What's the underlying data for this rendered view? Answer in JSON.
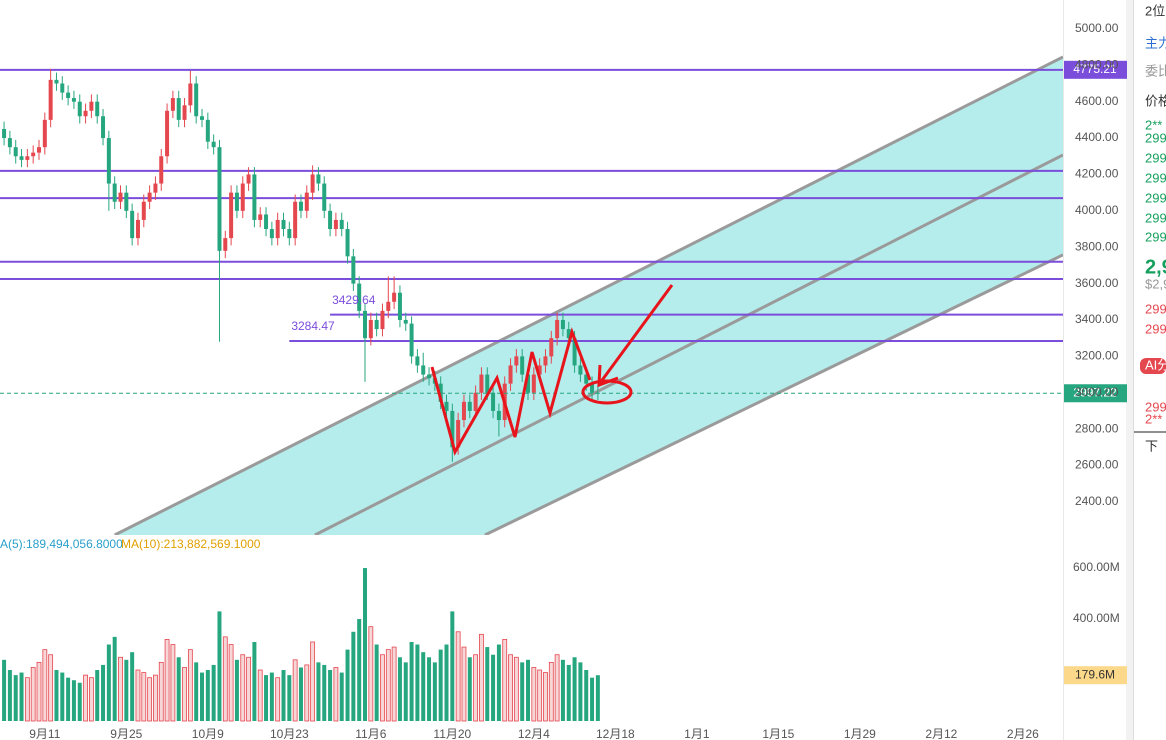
{
  "chart_data": [
    {
      "type": "candlestick",
      "x": [
        -7,
        -6,
        -5,
        -4,
        -3,
        -2,
        -1,
        0,
        1,
        2,
        3,
        4,
        5,
        6,
        7,
        8,
        9,
        10,
        11,
        12,
        13,
        14,
        15,
        16,
        17,
        18,
        19,
        20,
        21,
        22,
        23,
        24,
        25,
        26,
        27,
        28,
        29,
        30,
        31,
        32,
        33,
        34,
        35,
        36,
        37,
        38,
        39,
        40,
        41,
        42,
        43,
        44,
        45,
        46,
        47,
        48,
        49,
        50,
        51,
        52,
        53,
        54,
        55,
        56,
        57,
        58,
        59,
        60,
        61,
        62,
        63,
        64,
        65,
        66,
        67,
        68,
        69,
        70,
        71,
        72,
        73,
        74,
        75,
        76,
        77,
        78,
        79,
        80,
        81,
        82,
        83,
        84,
        85,
        86,
        87,
        88,
        89,
        90,
        91,
        92,
        93,
        94,
        95
      ],
      "open": [
        4450,
        4400,
        4350,
        4300,
        4280,
        4300,
        4320,
        4350,
        4500,
        4720,
        4700,
        4650,
        4620,
        4600,
        4520,
        4550,
        4600,
        4520,
        4400,
        4150,
        4050,
        4100,
        4000,
        3850,
        3950,
        4050,
        4100,
        4150,
        4300,
        4550,
        4620,
        4500,
        4580,
        4700,
        4520,
        4500,
        4380,
        4350,
        3780,
        3850,
        4100,
        4000,
        4150,
        4200,
        3950,
        3980,
        3900,
        3850,
        3950,
        3900,
        3850,
        4050,
        4000,
        4100,
        4200,
        4150,
        4000,
        3900,
        3950,
        3900,
        3750,
        3600,
        3450,
        3300,
        3400,
        3350,
        3450,
        3500,
        3550,
        3400,
        3380,
        3200,
        3150,
        3100,
        3080,
        3050,
        2950,
        2900,
        2700,
        2850,
        2950,
        2900,
        3000,
        3100,
        3000,
        2900,
        2850,
        3050,
        3150,
        3200,
        3100,
        3000,
        3100,
        3150,
        3200,
        3300,
        3400,
        3350,
        3300,
        3150,
        3100,
        3050,
        3000
      ],
      "high": [
        4490,
        4440,
        4390,
        4340,
        4340,
        4360,
        4390,
        4540,
        4780,
        4760,
        4740,
        4690,
        4660,
        4640,
        4590,
        4640,
        4640,
        4560,
        4440,
        4190,
        4140,
        4140,
        4040,
        3990,
        4090,
        4140,
        4190,
        4340,
        4590,
        4660,
        4660,
        4620,
        4770,
        4740,
        4560,
        4540,
        4420,
        4390,
        3890,
        4140,
        4140,
        4190,
        4240,
        4240,
        4020,
        4020,
        3940,
        3990,
        3990,
        3940,
        4090,
        4090,
        4140,
        4250,
        4240,
        4190,
        4040,
        3990,
        3990,
        3940,
        3790,
        3640,
        3490,
        3440,
        3440,
        3490,
        3640,
        3640,
        3590,
        3440,
        3420,
        3240,
        3220,
        3140,
        3120,
        3090,
        2990,
        2940,
        2890,
        2990,
        2990,
        3040,
        3140,
        3140,
        3040,
        2940,
        3090,
        3190,
        3240,
        3240,
        3140,
        3140,
        3190,
        3240,
        3340,
        3440,
        3440,
        3390,
        3340,
        3190,
        3140,
        3090,
        3040
      ],
      "low": [
        4360,
        4310,
        4260,
        4240,
        4240,
        4260,
        4280,
        4310,
        4460,
        4660,
        4610,
        4580,
        4560,
        4480,
        4480,
        4510,
        4480,
        4360,
        4000,
        4010,
        4010,
        3960,
        3810,
        3810,
        3910,
        4010,
        4060,
        4110,
        4260,
        4510,
        4460,
        4460,
        4540,
        4480,
        4460,
        4340,
        4310,
        3280,
        3740,
        3810,
        3960,
        3960,
        4110,
        3910,
        3910,
        3860,
        3810,
        3810,
        3860,
        3810,
        3810,
        3960,
        3960,
        4060,
        4110,
        3960,
        3860,
        3860,
        3860,
        3710,
        3560,
        3410,
        3060,
        3260,
        3310,
        3310,
        3410,
        3460,
        3360,
        3340,
        3160,
        3110,
        3060,
        3040,
        3010,
        2910,
        2860,
        2620,
        2660,
        2810,
        2860,
        2860,
        2960,
        2960,
        2860,
        2760,
        2810,
        3010,
        3110,
        3060,
        2960,
        2960,
        3060,
        3110,
        3160,
        3260,
        3310,
        3260,
        3110,
        3060,
        3010,
        2960,
        2960
      ],
      "close": [
        4400,
        4350,
        4300,
        4280,
        4300,
        4320,
        4350,
        4500,
        4720,
        4700,
        4650,
        4620,
        4600,
        4520,
        4550,
        4600,
        4520,
        4400,
        4150,
        4050,
        4100,
        4000,
        3850,
        3950,
        4050,
        4100,
        4150,
        4300,
        4550,
        4620,
        4500,
        4580,
        4700,
        4520,
        4500,
        4380,
        4350,
        3780,
        3850,
        4100,
        4000,
        4150,
        4200,
        3950,
        3980,
        3900,
        3850,
        3950,
        3900,
        3850,
        4050,
        4000,
        4100,
        4200,
        4150,
        4000,
        3900,
        3950,
        3900,
        3750,
        3600,
        3450,
        3300,
        3400,
        3350,
        3450,
        3500,
        3550,
        3400,
        3380,
        3200,
        3150,
        3100,
        3080,
        3050,
        2950,
        2900,
        2700,
        2850,
        2950,
        2900,
        3000,
        3100,
        3000,
        2900,
        2850,
        3050,
        3150,
        3200,
        3100,
        3000,
        3100,
        3150,
        3200,
        3300,
        3400,
        3350,
        3300,
        3150,
        3100,
        3050,
        3000,
        2997.22
      ],
      "up_color": "#e5474f",
      "down_color": "#26a67f",
      "xlim": [
        -7.7,
        174.9
      ],
      "xticks": [
        {
          "value": 0,
          "label": "9月11"
        },
        {
          "value": 14,
          "label": "9月25"
        },
        {
          "value": 28,
          "label": "10月9"
        },
        {
          "value": 42,
          "label": "10月23"
        },
        {
          "value": 56,
          "label": "11月6"
        },
        {
          "value": 70,
          "label": "11月20"
        },
        {
          "value": 84,
          "label": "12月4"
        },
        {
          "value": 98,
          "label": "12月18"
        },
        {
          "value": 112,
          "label": "1月1"
        },
        {
          "value": 126,
          "label": "1月15"
        },
        {
          "value": 140,
          "label": "1月29"
        },
        {
          "value": 154,
          "label": "2月12"
        },
        {
          "value": 168,
          "label": "2月26"
        }
      ],
      "ylim": [
        2218,
        5159
      ],
      "yticks": [
        {
          "value": 5000,
          "label": "5000.00"
        },
        {
          "value": 4800,
          "label": "4800.00"
        },
        {
          "value": 4600,
          "label": "4600.00"
        },
        {
          "value": 4400,
          "label": "4400.00"
        },
        {
          "value": 4200,
          "label": "4200.00"
        },
        {
          "value": 4000,
          "label": "4000.00"
        },
        {
          "value": 3800,
          "label": "3800.00"
        },
        {
          "value": 3600,
          "label": "3600.00"
        },
        {
          "value": 3400,
          "label": "3400.00"
        },
        {
          "value": 3200,
          "label": "3200.00"
        },
        {
          "value": 3000,
          "label": "3000.00"
        },
        {
          "value": 2800,
          "label": "2800.00"
        },
        {
          "value": 2600,
          "label": "2600.00"
        },
        {
          "value": 2400,
          "label": "2400.00"
        }
      ],
      "levels": [
        {
          "value": 4775.21,
          "start": -7.7
        },
        {
          "value": 3429.64,
          "start": 49
        },
        {
          "value": 3284.47,
          "start": 42
        }
      ],
      "hlines": [
        4220,
        4070,
        3720,
        3625
      ],
      "level_color": "#7b4ddb",
      "channel": [
        {
          "start": [
            12,
            2218
          ],
          "end": [
            174.9,
            4846
          ]
        },
        {
          "start": [
            46.4,
            2218
          ],
          "end": [
            174.9,
            4307
          ]
        },
        {
          "start": [
            75.6,
            2218
          ],
          "end": [
            174.9,
            3758
          ]
        }
      ],
      "channel_fill": "#b5ecec"
    },
    {
      "type": "bar",
      "ma_labels": [
        "A(5):189,494,056.8000",
        "MA(10):213,882,569.1000"
      ],
      "values": [
        240,
        200,
        180,
        190,
        170,
        210,
        230,
        280,
        260,
        200,
        190,
        170,
        160,
        150,
        180,
        170,
        200,
        220,
        300,
        330,
        250,
        240,
        270,
        200,
        190,
        170,
        180,
        230,
        320,
        300,
        250,
        210,
        280,
        230,
        190,
        200,
        220,
        430,
        330,
        300,
        240,
        260,
        250,
        310,
        200,
        180,
        190,
        170,
        200,
        180,
        240,
        210,
        220,
        310,
        230,
        220,
        200,
        210,
        190,
        280,
        350,
        400,
        600,
        370,
        300,
        260,
        280,
        290,
        250,
        230,
        310,
        300,
        270,
        250,
        230,
        280,
        300,
        430,
        350,
        290,
        250,
        260,
        340,
        290,
        260,
        300,
        320,
        260,
        250,
        230,
        240,
        210,
        200,
        190,
        230,
        260,
        240,
        220,
        250,
        230,
        200,
        170,
        179.6
      ],
      "current_label": "179.6M",
      "ylim": [
        0,
        710
      ],
      "yticks": [
        {
          "value": 600,
          "label": "600.00M"
        },
        {
          "value": 400,
          "label": "400.00M"
        }
      ]
    }
  ],
  "side_panel": [
    "2位",
    "主力",
    "委比",
    "价格",
    "2**",
    "299",
    "299",
    "299",
    "299",
    "299",
    "299",
    "2,9",
    "$2,9",
    "299",
    "299",
    "AI分",
    "299",
    "2**",
    "下"
  ]
}
